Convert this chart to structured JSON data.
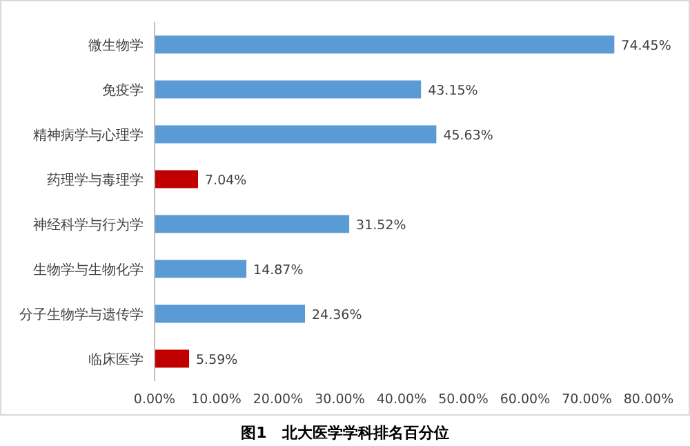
{
  "chart_data": {
    "type": "bar",
    "orientation": "horizontal",
    "title": "图1　北大医学学科排名百分位",
    "categories": [
      "微生物学",
      "免疫学",
      "精神病学与心理学",
      "药理学与毒理学",
      "神经科学与行为学",
      "生物学与生物化学",
      "分子生物学与遗传学",
      "临床医学"
    ],
    "values": [
      74.45,
      43.15,
      45.63,
      7.04,
      31.52,
      14.87,
      24.36,
      5.59
    ],
    "colors": [
      "#5b9bd5",
      "#5b9bd5",
      "#5b9bd5",
      "#c00000",
      "#5b9bd5",
      "#5b9bd5",
      "#5b9bd5",
      "#c00000"
    ],
    "value_labels": [
      "74.45%",
      "43.15%",
      "45.63%",
      "7.04%",
      "31.52%",
      "14.87%",
      "24.36%",
      "5.59%"
    ],
    "xlim": [
      0,
      80
    ],
    "xticks": [
      {
        "value": 0,
        "label": "0.00%"
      },
      {
        "value": 10,
        "label": "10.00%"
      },
      {
        "value": 20,
        "label": "20.00%"
      },
      {
        "value": 30,
        "label": "30.00%"
      },
      {
        "value": 40,
        "label": "40.00%"
      },
      {
        "value": 50,
        "label": "50.00%"
      },
      {
        "value": 60,
        "label": "60.00%"
      },
      {
        "value": 70,
        "label": "70.00%"
      },
      {
        "value": 80,
        "label": "80.00%"
      }
    ],
    "grid": false
  }
}
